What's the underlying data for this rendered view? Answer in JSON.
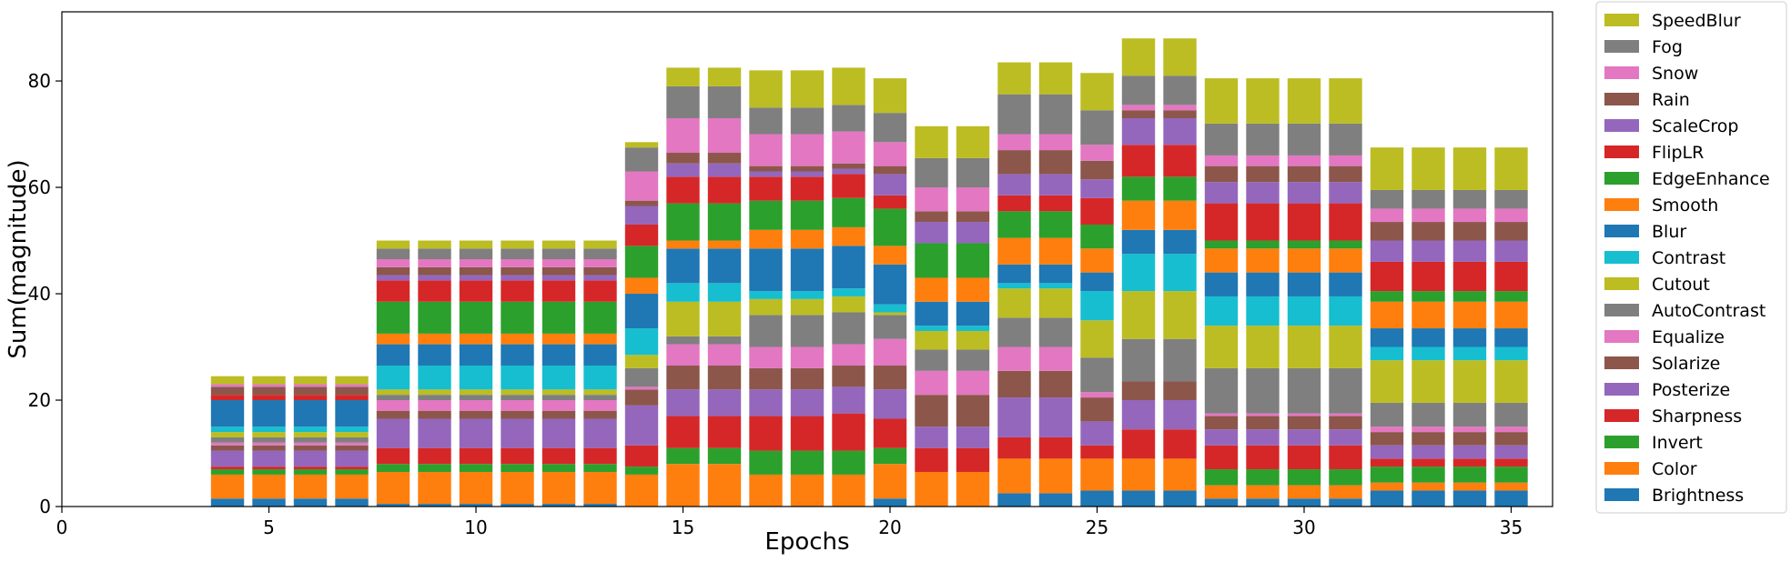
{
  "chart_data": {
    "type": "bar",
    "stacked": true,
    "xlabel": "Epochs",
    "ylabel": "Sum(magnitude)",
    "xlim": [
      0,
      36
    ],
    "ylim": [
      0,
      93
    ],
    "xticks": [
      "0",
      "5",
      "10",
      "15",
      "20",
      "25",
      "30",
      "35"
    ],
    "yticks": [
      "0",
      "20",
      "40",
      "60",
      "80"
    ],
    "grid": false,
    "legend_position": "right",
    "categories": [
      4,
      5,
      6,
      7,
      8,
      9,
      10,
      11,
      12,
      13,
      14,
      15,
      16,
      17,
      18,
      19,
      20,
      21,
      22,
      23,
      24,
      25,
      26,
      27,
      28,
      29,
      30,
      31,
      32,
      33,
      34,
      35
    ],
    "series": [
      {
        "name": "Brightness",
        "color": "#1f77b4",
        "values": [
          1.5,
          1.5,
          1.5,
          1.5,
          0.5,
          0.5,
          0.5,
          0.5,
          0.5,
          0.5,
          0,
          0,
          0,
          0,
          0,
          0,
          1.5,
          0,
          0,
          2.5,
          2.5,
          3,
          3,
          3,
          1.5,
          1.5,
          1.5,
          1.5,
          3,
          3,
          3,
          3
        ]
      },
      {
        "name": "Color",
        "color": "#ff7f0e",
        "values": [
          4.5,
          4.5,
          4.5,
          4.5,
          6,
          6,
          6,
          6,
          6,
          6,
          6,
          8,
          8,
          6,
          6,
          6,
          6.5,
          6.5,
          6.5,
          6.5,
          6.5,
          6,
          6,
          6,
          2.5,
          2.5,
          2.5,
          2.5,
          1.5,
          1.5,
          1.5,
          1.5
        ]
      },
      {
        "name": "Invert",
        "color": "#2ca02c",
        "values": [
          1,
          1,
          1,
          1,
          1.5,
          1.5,
          1.5,
          1.5,
          1.5,
          1.5,
          1.5,
          3,
          3,
          4.5,
          4.5,
          4.5,
          3,
          0,
          0,
          0,
          0,
          0,
          0,
          0,
          3,
          3,
          3,
          3,
          3,
          3,
          3,
          3
        ]
      },
      {
        "name": "Sharpness",
        "color": "#d62728",
        "values": [
          0.5,
          0.5,
          0.5,
          0.5,
          3,
          3,
          3,
          3,
          3,
          3,
          4,
          6,
          6,
          6.5,
          6.5,
          7,
          5.5,
          4.5,
          4.5,
          4,
          4,
          2.5,
          5.5,
          5.5,
          4.5,
          4.5,
          4.5,
          4.5,
          1.5,
          1.5,
          1.5,
          1.5
        ]
      },
      {
        "name": "Posterize",
        "color": "#9467bd",
        "values": [
          3,
          3,
          3,
          3,
          5.5,
          5.5,
          5.5,
          5.5,
          5.5,
          5.5,
          7.5,
          5,
          5,
          5,
          5,
          5,
          5.5,
          4,
          4,
          7.5,
          7.5,
          4.5,
          5.5,
          5.5,
          3,
          3,
          3,
          3,
          2.5,
          2.5,
          2.5,
          2.5
        ]
      },
      {
        "name": "Solarize",
        "color": "#8c564b",
        "values": [
          1,
          1,
          1,
          1,
          1.5,
          1.5,
          1.5,
          1.5,
          1.5,
          1.5,
          3,
          4.5,
          4.5,
          4,
          4,
          4,
          4.5,
          6,
          6,
          5,
          5,
          4.5,
          3.5,
          3.5,
          2.5,
          2.5,
          2.5,
          2.5,
          2.5,
          2.5,
          2.5,
          2.5
        ]
      },
      {
        "name": "Equalize",
        "color": "#e377c2",
        "values": [
          0.5,
          0.5,
          0.5,
          0.5,
          2,
          2,
          2,
          2,
          2,
          2,
          0.5,
          4,
          4,
          4,
          4,
          4,
          5,
          4.5,
          4.5,
          4.5,
          4.5,
          1,
          0,
          0,
          0.5,
          0.5,
          0.5,
          0.5,
          1,
          1,
          1,
          1
        ]
      },
      {
        "name": "AutoContrast",
        "color": "#7f7f7f",
        "values": [
          1,
          1,
          1,
          1,
          1,
          1,
          1,
          1,
          1,
          1,
          3.5,
          1.5,
          1.5,
          6,
          6,
          6,
          4.5,
          4,
          4,
          5.5,
          5.5,
          6.5,
          8,
          8,
          8.5,
          8.5,
          8.5,
          8.5,
          4.5,
          4.5,
          4.5,
          4.5
        ]
      },
      {
        "name": "Cutout",
        "color": "#bcbd22",
        "values": [
          1,
          1,
          1,
          1,
          1,
          1,
          1,
          1,
          1,
          1,
          2.5,
          6.5,
          6.5,
          3,
          3,
          3,
          0.5,
          3.5,
          3.5,
          5.5,
          5.5,
          7,
          9,
          9,
          8,
          8,
          8,
          8,
          8,
          8,
          8,
          8
        ]
      },
      {
        "name": "Contrast",
        "color": "#17becf",
        "values": [
          1,
          1,
          1,
          1,
          4.5,
          4.5,
          4.5,
          4.5,
          4.5,
          4.5,
          5,
          3.5,
          3.5,
          1.5,
          1.5,
          1.5,
          1.5,
          1,
          1,
          1,
          1,
          5.5,
          7,
          7,
          5.5,
          5.5,
          5.5,
          5.5,
          2.5,
          2.5,
          2.5,
          2.5
        ]
      },
      {
        "name": "Blur",
        "color": "#1f77b4",
        "values": [
          5,
          5,
          5,
          5,
          4,
          4,
          4,
          4,
          4,
          4,
          6.5,
          6.5,
          6.5,
          8,
          8,
          8,
          7.5,
          4.5,
          4.5,
          3.5,
          3.5,
          3.5,
          4.5,
          4.5,
          4.5,
          4.5,
          4.5,
          4.5,
          3.5,
          3.5,
          3.5,
          3.5
        ]
      },
      {
        "name": "Smooth",
        "color": "#ff7f0e",
        "values": [
          0,
          0,
          0,
          0,
          2,
          2,
          2,
          2,
          2,
          2,
          3,
          1.5,
          1.5,
          3.5,
          3.5,
          3.5,
          3.5,
          4.5,
          4.5,
          5,
          5,
          4.5,
          5.5,
          5.5,
          4.5,
          4.5,
          4.5,
          4.5,
          5,
          5,
          5,
          5
        ]
      },
      {
        "name": "EdgeEnhance",
        "color": "#2ca02c",
        "values": [
          0,
          0,
          0,
          0,
          6,
          6,
          6,
          6,
          6,
          6,
          6,
          7,
          7,
          5.5,
          5.5,
          5.5,
          7,
          6.5,
          6.5,
          5,
          5,
          4.5,
          4.5,
          4.5,
          1.5,
          1.5,
          1.5,
          1.5,
          2,
          2,
          2,
          2
        ]
      },
      {
        "name": "FlipLR",
        "color": "#d62728",
        "values": [
          1,
          1,
          1,
          1,
          4,
          4,
          4,
          4,
          4,
          4,
          4,
          5,
          5,
          4.5,
          4.5,
          4.5,
          2.5,
          0,
          0,
          3,
          3,
          5,
          6,
          6,
          7,
          7,
          7,
          7,
          5.5,
          5.5,
          5.5,
          5.5
        ]
      },
      {
        "name": "ScaleCrop",
        "color": "#9467bd",
        "values": [
          0,
          0,
          0,
          0,
          1,
          1,
          1,
          1,
          1,
          1,
          3.5,
          2.5,
          2.5,
          1,
          1,
          1,
          4,
          4,
          4,
          4,
          4,
          3.5,
          5,
          5,
          4,
          4,
          4,
          4,
          4,
          4,
          4,
          4
        ]
      },
      {
        "name": "Rain",
        "color": "#8c564b",
        "values": [
          1.5,
          1.5,
          1.5,
          1.5,
          1.5,
          1.5,
          1.5,
          1.5,
          1.5,
          1.5,
          1,
          2,
          2,
          1,
          1,
          1,
          1.5,
          2,
          2,
          4.5,
          4.5,
          3.5,
          1.5,
          1.5,
          3,
          3,
          3,
          3,
          3.5,
          3.5,
          3.5,
          3.5
        ]
      },
      {
        "name": "Snow",
        "color": "#e377c2",
        "values": [
          0.5,
          0.5,
          0.5,
          0.5,
          1.5,
          1.5,
          1.5,
          1.5,
          1.5,
          1.5,
          5.5,
          6.5,
          6.5,
          6,
          6,
          6,
          4.5,
          4.5,
          4.5,
          3,
          3,
          3,
          1,
          1,
          2,
          2,
          2,
          2,
          2.5,
          2.5,
          2.5,
          2.5
        ]
      },
      {
        "name": "Fog",
        "color": "#7f7f7f",
        "values": [
          0,
          0,
          0,
          0,
          2,
          2,
          2,
          2,
          2,
          2,
          4.5,
          6,
          6,
          5,
          5,
          5,
          5.5,
          5.5,
          5.5,
          7.5,
          7.5,
          6.5,
          5.5,
          5.5,
          6,
          6,
          6,
          6,
          3.5,
          3.5,
          3.5,
          3.5
        ]
      },
      {
        "name": "SpeedBlur",
        "color": "#bcbd22",
        "values": [
          1.5,
          1.5,
          1.5,
          1.5,
          1.5,
          1.5,
          1.5,
          1.5,
          1.5,
          1.5,
          1,
          3.5,
          3.5,
          7,
          7,
          7,
          6.5,
          6,
          6,
          6,
          6,
          7,
          7,
          7,
          8.5,
          8.5,
          8.5,
          8.5,
          8,
          8,
          8,
          8
        ]
      }
    ]
  }
}
